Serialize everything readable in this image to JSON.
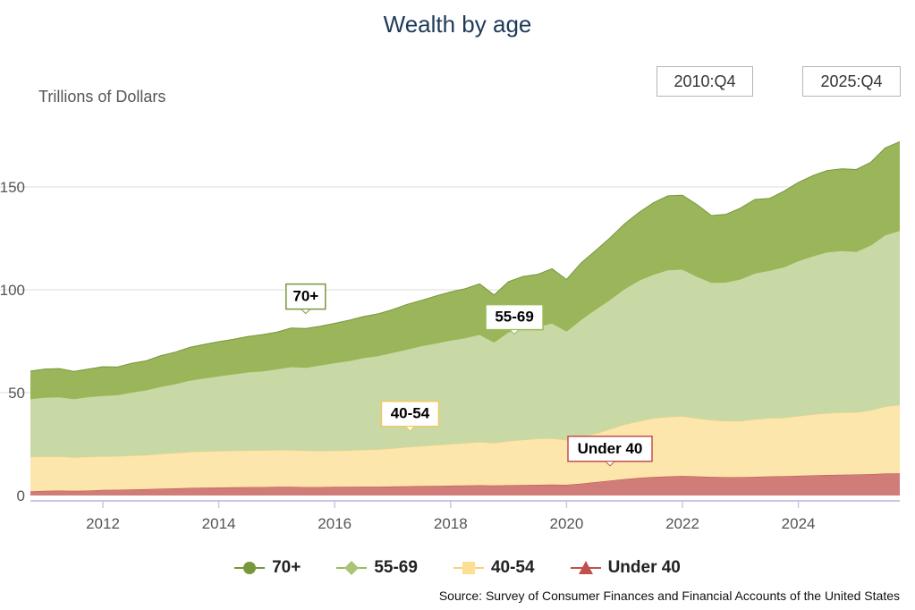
{
  "chart_data": {
    "type": "area",
    "stacked": true,
    "title": "Wealth by age",
    "ylabel": "Trillions of Dollars",
    "xlabel": "",
    "range_start": "2010:Q4",
    "range_end": "2025:Q4",
    "x": [
      2010.75,
      2011.0,
      2011.25,
      2011.5,
      2011.75,
      2012.0,
      2012.25,
      2012.5,
      2012.75,
      2013.0,
      2013.25,
      2013.5,
      2013.75,
      2014.0,
      2014.25,
      2014.5,
      2014.75,
      2015.0,
      2015.25,
      2015.5,
      2015.75,
      2016.0,
      2016.25,
      2016.5,
      2016.75,
      2017.0,
      2017.25,
      2017.5,
      2017.75,
      2018.0,
      2018.25,
      2018.5,
      2018.75,
      2019.0,
      2019.25,
      2019.5,
      2019.75,
      2020.0,
      2020.25,
      2020.5,
      2020.75,
      2021.0,
      2021.25,
      2021.5,
      2021.75,
      2022.0,
      2022.25,
      2022.5,
      2022.75,
      2023.0,
      2023.25,
      2023.5,
      2023.75,
      2024.0,
      2024.25,
      2024.5,
      2024.75,
      2025.0,
      2025.25,
      2025.5,
      2025.75
    ],
    "x_ticks": [
      2012,
      2014,
      2016,
      2018,
      2020,
      2022,
      2024
    ],
    "y_ticks": [
      0,
      50,
      100,
      150
    ],
    "y_tick_labels": [
      "0",
      "50",
      "100",
      "150"
    ],
    "xlim": [
      2010.75,
      2025.75
    ],
    "ylim": [
      0,
      180
    ],
    "grid": true,
    "legend_position": "bottom",
    "series": [
      {
        "name": "Under 40",
        "color": "#c0504d",
        "fill": "#d07d7a",
        "marker": "triangle",
        "values": [
          2.0,
          2.3,
          2.4,
          2.3,
          2.4,
          2.7,
          2.8,
          2.9,
          3.1,
          3.3,
          3.5,
          3.7,
          3.8,
          3.9,
          4.0,
          4.1,
          4.1,
          4.2,
          4.2,
          4.1,
          4.1,
          4.2,
          4.2,
          4.3,
          4.3,
          4.4,
          4.5,
          4.6,
          4.7,
          4.8,
          4.9,
          5.0,
          4.9,
          5.0,
          5.1,
          5.2,
          5.3,
          5.2,
          5.8,
          6.5,
          7.2,
          8.0,
          8.6,
          9.0,
          9.3,
          9.5,
          9.3,
          9.1,
          8.9,
          8.9,
          9.1,
          9.3,
          9.4,
          9.6,
          9.8,
          10.0,
          10.1,
          10.2,
          10.4,
          10.7,
          10.8
        ]
      },
      {
        "name": "40-54",
        "color": "#f7d37a",
        "fill": "#fde6ac",
        "marker": "square",
        "values": [
          16.8,
          16.6,
          16.5,
          16.2,
          16.4,
          16.3,
          16.3,
          16.5,
          16.6,
          16.9,
          17.2,
          17.5,
          17.6,
          17.7,
          17.8,
          17.8,
          17.8,
          17.9,
          17.9,
          17.7,
          17.6,
          17.6,
          17.7,
          17.9,
          18.1,
          18.5,
          19.0,
          19.4,
          19.8,
          20.2,
          20.6,
          21.0,
          20.6,
          21.5,
          22.0,
          22.4,
          22.5,
          21.7,
          22.7,
          23.5,
          25.0,
          26.5,
          27.5,
          28.5,
          28.9,
          29.0,
          28.2,
          27.5,
          27.3,
          27.3,
          28.0,
          28.3,
          28.3,
          29.0,
          29.6,
          30.0,
          30.3,
          30.2,
          31.0,
          32.5,
          33.2
        ]
      },
      {
        "name": "55-69",
        "color": "#9bbb59",
        "fill": "#c8d9a6",
        "marker": "diamond",
        "values": [
          28.2,
          28.8,
          29.0,
          28.5,
          29.2,
          29.6,
          29.8,
          30.8,
          31.6,
          32.8,
          33.6,
          34.8,
          35.7,
          36.5,
          37.2,
          38.1,
          38.6,
          39.4,
          40.5,
          40.4,
          41.7,
          42.7,
          43.6,
          44.8,
          45.5,
          46.6,
          47.6,
          48.8,
          49.6,
          50.5,
          51.1,
          52.3,
          49.0,
          53.0,
          54.0,
          54.4,
          56.0,
          53.0,
          57.0,
          60.5,
          63.0,
          66.0,
          68.5,
          70.0,
          71.5,
          71.5,
          69.0,
          67.0,
          67.5,
          69.0,
          71.0,
          71.8,
          73.4,
          75.5,
          77.0,
          78.4,
          78.6,
          78.2,
          80.3,
          83.5,
          84.8
        ]
      },
      {
        "name": "70+",
        "color": "#76983a",
        "fill": "#9bb55a",
        "marker": "circle",
        "values": [
          13.5,
          13.8,
          13.8,
          13.3,
          13.5,
          14.0,
          13.6,
          14.1,
          14.2,
          15.0,
          15.4,
          16.0,
          16.4,
          16.7,
          16.9,
          17.3,
          17.7,
          17.9,
          18.8,
          19.0,
          18.9,
          19.2,
          19.7,
          20.0,
          20.4,
          20.9,
          21.8,
          22.1,
          22.9,
          23.5,
          23.9,
          24.6,
          23.0,
          24.5,
          25.4,
          25.5,
          26.4,
          25.1,
          27.5,
          28.5,
          30.0,
          31.5,
          33.0,
          34.8,
          36.0,
          36.0,
          35.0,
          32.5,
          33.0,
          34.5,
          35.8,
          35.0,
          36.8,
          38.1,
          39.1,
          39.6,
          39.8,
          39.9,
          40.3,
          42.3,
          43.2
        ]
      }
    ],
    "annotations": [
      {
        "text": "70+",
        "x": 2015.5,
        "y": 88,
        "border": "#76983a"
      },
      {
        "text": "55-69",
        "x": 2019.1,
        "y": 78,
        "border": "#9bbb59"
      },
      {
        "text": "40-54",
        "x": 2017.3,
        "y": 31,
        "border": "#f0c865"
      },
      {
        "text": "Under 40",
        "x": 2020.75,
        "y": 14,
        "border": "#c0504d"
      }
    ]
  },
  "source": "Source: Survey of Consumer Finances and Financial Accounts of the United States"
}
